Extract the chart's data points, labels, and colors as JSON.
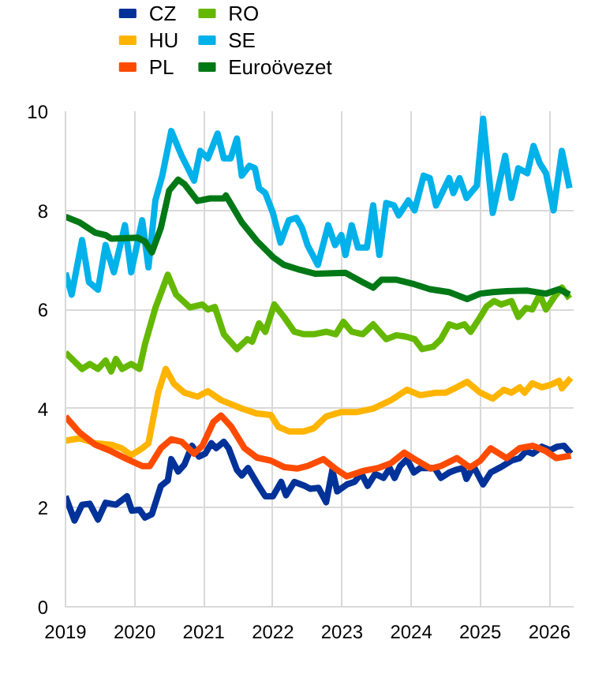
{
  "chart_data": {
    "type": "line",
    "xlim": [
      2019,
      2026.35
    ],
    "xticks": [
      2019,
      2020,
      2021,
      2022,
      2023,
      2024,
      2025,
      2026
    ],
    "ylim": [
      0,
      10
    ],
    "yticks": [
      0,
      2,
      4,
      6,
      8,
      10
    ],
    "grid": true,
    "legend": "top left",
    "line_style": "solid",
    "marker": "none",
    "series": [
      {
        "name": "CZ",
        "color": "#003299",
        "x": [
          2019.0,
          2019.13,
          2019.24,
          2019.35,
          2019.47,
          2019.58,
          2019.73,
          2019.89,
          2019.96,
          2020.07,
          2020.15,
          2020.25,
          2020.38,
          2020.48,
          2020.53,
          2020.63,
          2020.72,
          2020.83,
          2020.93,
          2021.02,
          2021.11,
          2021.18,
          2021.29,
          2021.36,
          2021.48,
          2021.55,
          2021.64,
          2021.78,
          2021.89,
          2022.0,
          2022.12,
          2022.19,
          2022.31,
          2022.46,
          2022.54,
          2022.66,
          2022.77,
          2022.86,
          2022.93,
          2023.07,
          2023.18,
          2023.28,
          2023.37,
          2023.48,
          2023.6,
          2023.69,
          2023.76,
          2023.84,
          2023.94,
          2024.04,
          2024.13,
          2024.24,
          2024.34,
          2024.43,
          2024.55,
          2024.64,
          2024.75,
          2024.8,
          2024.9,
          2025.04,
          2025.15,
          2025.3,
          2025.45,
          2025.57,
          2025.66,
          2025.76,
          2025.89,
          2026.01,
          2026.11,
          2026.21,
          2026.31
        ],
        "values": [
          2.23,
          1.74,
          2.06,
          2.08,
          1.76,
          2.1,
          2.06,
          2.23,
          1.94,
          1.96,
          1.8,
          1.87,
          2.44,
          2.55,
          2.98,
          2.73,
          2.87,
          3.25,
          3.03,
          3.09,
          3.3,
          3.2,
          3.33,
          3.2,
          2.76,
          2.65,
          2.8,
          2.47,
          2.23,
          2.23,
          2.52,
          2.25,
          2.52,
          2.44,
          2.38,
          2.4,
          2.11,
          2.76,
          2.33,
          2.47,
          2.52,
          2.69,
          2.44,
          2.68,
          2.6,
          2.8,
          2.6,
          2.84,
          2.98,
          2.71,
          2.8,
          2.8,
          2.8,
          2.6,
          2.71,
          2.76,
          2.8,
          2.58,
          2.84,
          2.47,
          2.71,
          2.82,
          2.95,
          3.0,
          3.14,
          3.09,
          3.23,
          3.16,
          3.23,
          3.25,
          3.09
        ]
      },
      {
        "name": "HU",
        "color": "#ffb400",
        "x": [
          2019.0,
          2019.2,
          2019.43,
          2019.66,
          2019.81,
          2019.95,
          2020.11,
          2020.2,
          2020.34,
          2020.45,
          2020.57,
          2020.72,
          2020.91,
          2021.06,
          2021.25,
          2021.55,
          2021.77,
          2021.97,
          2022.08,
          2022.23,
          2022.45,
          2022.59,
          2022.77,
          2022.99,
          2023.22,
          2023.45,
          2023.71,
          2023.94,
          2024.13,
          2024.36,
          2024.5,
          2024.66,
          2024.81,
          2025.0,
          2025.18,
          2025.34,
          2025.45,
          2025.57,
          2025.64,
          2025.75,
          2025.89,
          2026.02,
          2026.14,
          2026.18,
          2026.31
        ],
        "values": [
          3.35,
          3.4,
          3.3,
          3.27,
          3.2,
          3.06,
          3.2,
          3.3,
          4.32,
          4.8,
          4.5,
          4.32,
          4.24,
          4.35,
          4.17,
          4.0,
          3.9,
          3.87,
          3.63,
          3.54,
          3.54,
          3.6,
          3.84,
          3.93,
          3.93,
          4.0,
          4.17,
          4.38,
          4.27,
          4.32,
          4.32,
          4.43,
          4.54,
          4.32,
          4.2,
          4.38,
          4.32,
          4.43,
          4.32,
          4.51,
          4.43,
          4.48,
          4.56,
          4.41,
          4.62
        ]
      },
      {
        "name": "PL",
        "color": "#ff4b00",
        "x": [
          2019.0,
          2019.2,
          2019.43,
          2019.66,
          2019.89,
          2020.11,
          2020.22,
          2020.38,
          2020.53,
          2020.68,
          2020.86,
          2020.98,
          2021.14,
          2021.25,
          2021.4,
          2021.59,
          2021.77,
          2021.97,
          2022.16,
          2022.35,
          2022.5,
          2022.73,
          2022.92,
          2023.07,
          2023.3,
          2023.52,
          2023.71,
          2023.9,
          2024.05,
          2024.28,
          2024.43,
          2024.66,
          2024.85,
          2025.0,
          2025.15,
          2025.38,
          2025.57,
          2025.76,
          2025.95,
          2026.1,
          2026.31
        ],
        "values": [
          3.84,
          3.52,
          3.27,
          3.14,
          2.98,
          2.84,
          2.84,
          3.2,
          3.38,
          3.33,
          3.09,
          3.25,
          3.73,
          3.86,
          3.63,
          3.2,
          3.01,
          2.95,
          2.82,
          2.79,
          2.84,
          2.98,
          2.77,
          2.63,
          2.74,
          2.8,
          2.9,
          3.11,
          2.98,
          2.79,
          2.84,
          3.0,
          2.81,
          2.95,
          3.2,
          3.0,
          3.2,
          3.25,
          3.14,
          3.0,
          3.05
        ]
      },
      {
        "name": "RO",
        "color": "#65b800",
        "x": [
          2019.0,
          2019.24,
          2019.35,
          2019.47,
          2019.58,
          2019.66,
          2019.73,
          2019.82,
          2019.95,
          2020.07,
          2020.15,
          2020.3,
          2020.48,
          2020.6,
          2020.8,
          2020.98,
          2021.06,
          2021.16,
          2021.29,
          2021.48,
          2021.63,
          2021.7,
          2021.8,
          2021.89,
          2022.02,
          2022.16,
          2022.31,
          2022.45,
          2022.59,
          2022.77,
          2022.91,
          2023.02,
          2023.14,
          2023.3,
          2023.45,
          2023.64,
          2023.79,
          2023.93,
          2024.05,
          2024.16,
          2024.32,
          2024.43,
          2024.55,
          2024.66,
          2024.77,
          2024.86,
          2025.0,
          2025.09,
          2025.2,
          2025.3,
          2025.45,
          2025.55,
          2025.66,
          2025.75,
          2025.86,
          2025.95,
          2026.08,
          2026.18,
          2026.29
        ],
        "values": [
          5.13,
          4.8,
          4.9,
          4.8,
          4.97,
          4.75,
          5.0,
          4.8,
          4.9,
          4.8,
          5.3,
          6.03,
          6.7,
          6.3,
          6.04,
          6.1,
          6.0,
          6.05,
          5.5,
          5.2,
          5.4,
          5.35,
          5.72,
          5.55,
          6.1,
          5.85,
          5.55,
          5.5,
          5.5,
          5.55,
          5.5,
          5.75,
          5.55,
          5.5,
          5.7,
          5.4,
          5.48,
          5.45,
          5.4,
          5.2,
          5.25,
          5.4,
          5.7,
          5.65,
          5.7,
          5.55,
          5.85,
          6.06,
          6.17,
          6.1,
          6.17,
          5.85,
          6.03,
          6.0,
          6.3,
          6.0,
          6.27,
          6.44,
          6.22
        ]
      },
      {
        "name": "SE",
        "color": "#00b1ea",
        "x": [
          2019.0,
          2019.09,
          2019.24,
          2019.34,
          2019.47,
          2019.58,
          2019.7,
          2019.86,
          2019.95,
          2020.11,
          2020.2,
          2020.3,
          2020.4,
          2020.53,
          2020.68,
          2020.86,
          2020.95,
          2021.06,
          2021.2,
          2021.29,
          2021.39,
          2021.48,
          2021.55,
          2021.66,
          2021.74,
          2021.8,
          2021.89,
          2022.0,
          2022.11,
          2022.23,
          2022.34,
          2022.42,
          2022.5,
          2022.65,
          2022.8,
          2022.9,
          2022.99,
          2023.05,
          2023.14,
          2023.23,
          2023.36,
          2023.45,
          2023.54,
          2023.64,
          2023.75,
          2023.82,
          2023.96,
          2024.05,
          2024.18,
          2024.27,
          2024.36,
          2024.55,
          2024.61,
          2024.7,
          2024.8,
          2024.95,
          2025.04,
          2025.18,
          2025.36,
          2025.45,
          2025.55,
          2025.68,
          2025.77,
          2025.86,
          2025.95,
          2026.06,
          2026.18,
          2026.29
        ],
        "values": [
          6.74,
          6.3,
          7.4,
          6.55,
          6.4,
          7.3,
          6.75,
          7.7,
          6.75,
          7.8,
          6.85,
          8.2,
          8.7,
          9.6,
          9.1,
          8.6,
          9.2,
          9.05,
          9.55,
          9.05,
          9.05,
          9.45,
          8.7,
          8.9,
          8.85,
          8.45,
          8.35,
          7.95,
          7.35,
          7.8,
          7.85,
          7.65,
          7.3,
          6.9,
          7.7,
          7.3,
          7.5,
          7.1,
          7.7,
          7.25,
          7.25,
          8.1,
          7.1,
          8.15,
          8.1,
          7.9,
          8.2,
          8.0,
          8.7,
          8.65,
          8.1,
          8.65,
          8.35,
          8.65,
          8.25,
          8.5,
          9.85,
          7.95,
          9.1,
          8.25,
          8.85,
          8.75,
          9.3,
          8.95,
          8.75,
          8.0,
          9.2,
          8.45
        ]
      },
      {
        "name": "Euroövezet",
        "color": "#007816",
        "x": [
          2019.0,
          2019.2,
          2019.43,
          2019.58,
          2019.66,
          2020.04,
          2020.15,
          2020.25,
          2020.38,
          2020.5,
          2020.63,
          2020.72,
          2020.91,
          2021.09,
          2021.29,
          2021.32,
          2021.55,
          2021.77,
          2022.0,
          2022.16,
          2022.39,
          2022.61,
          2023.05,
          2023.3,
          2023.45,
          2023.57,
          2023.79,
          2024.02,
          2024.27,
          2024.55,
          2024.81,
          2025.0,
          2025.18,
          2025.38,
          2025.68,
          2025.95,
          2026.14,
          2026.29
        ],
        "values": [
          7.87,
          7.76,
          7.55,
          7.5,
          7.43,
          7.45,
          7.37,
          7.15,
          7.65,
          8.4,
          8.62,
          8.53,
          8.19,
          8.24,
          8.24,
          8.3,
          7.76,
          7.38,
          7.06,
          6.9,
          6.8,
          6.72,
          6.74,
          6.55,
          6.44,
          6.6,
          6.6,
          6.52,
          6.41,
          6.35,
          6.21,
          6.32,
          6.35,
          6.37,
          6.38,
          6.32,
          6.41,
          6.3
        ]
      }
    ]
  }
}
